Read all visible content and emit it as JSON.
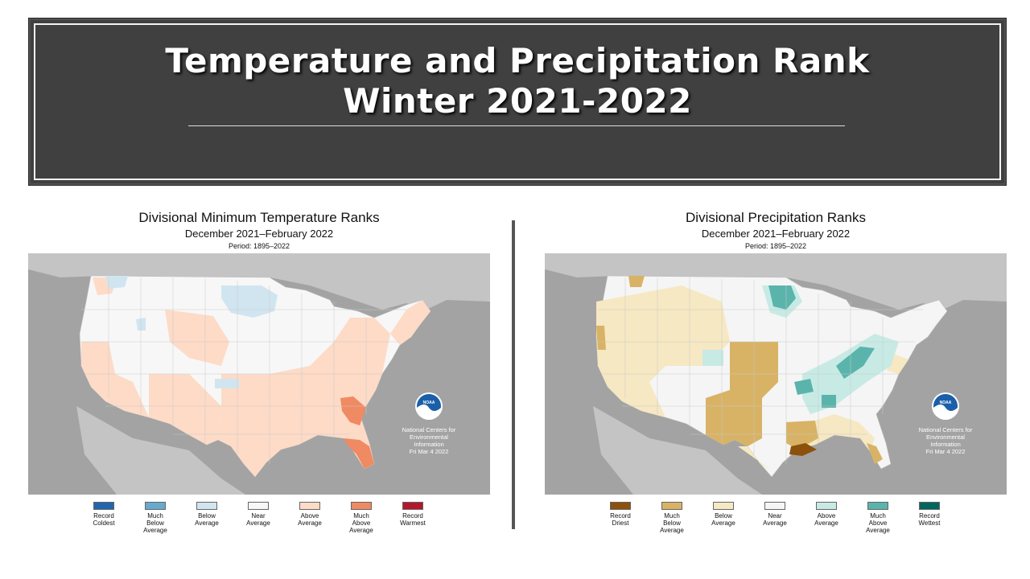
{
  "header": {
    "title_line1": "Temperature and Precipitation Rank",
    "title_line2": "Winter 2021-2022"
  },
  "maps": [
    {
      "title": "Divisional Minimum Temperature Ranks",
      "subtitle": "December 2021–February 2022",
      "period": "Period: 1895–2022",
      "credit": [
        "National Centers for",
        "Environmental",
        "Information",
        "Fri Mar  4 2022"
      ],
      "logo_text": "NOAA",
      "legend": [
        {
          "label": "Record\nColdest",
          "color": "#2166ac"
        },
        {
          "label": "Much\nBelow\nAverage",
          "color": "#67a9cf"
        },
        {
          "label": "Below\nAverage",
          "color": "#d1e5f0"
        },
        {
          "label": "Near\nAverage",
          "color": "#f7f7f7"
        },
        {
          "label": "Above\nAverage",
          "color": "#fddbc7"
        },
        {
          "label": "Much\nAbove\nAverage",
          "color": "#ef8a62"
        },
        {
          "label": "Record\nWarmest",
          "color": "#b2182b"
        }
      ]
    },
    {
      "title": "Divisional Precipitation Ranks",
      "subtitle": "December 2021–February 2022",
      "period": "Period: 1895–2022",
      "credit": [
        "National Centers for",
        "Environmental",
        "Information",
        "Fri Mar  4 2022"
      ],
      "logo_text": "NOAA",
      "legend": [
        {
          "label": "Record\nDriest",
          "color": "#8c510a"
        },
        {
          "label": "Much\nBelow\nAverage",
          "color": "#d8b365"
        },
        {
          "label": "Below\nAverage",
          "color": "#f6e8c3"
        },
        {
          "label": "Near\nAverage",
          "color": "#f5f5f5"
        },
        {
          "label": "Above\nAverage",
          "color": "#c7eae5"
        },
        {
          "label": "Much\nAbove\nAverage",
          "color": "#5ab4ac"
        },
        {
          "label": "Record\nWettest",
          "color": "#01665e"
        }
      ]
    }
  ]
}
